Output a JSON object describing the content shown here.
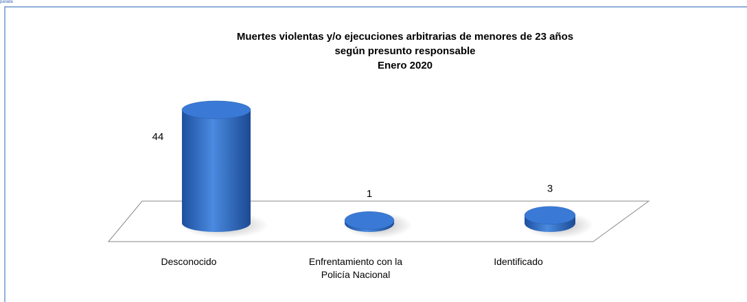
{
  "corner_label": "parada",
  "chart_data": {
    "type": "bar3d",
    "title": [
      "Muertes violentas y/o ejecuciones arbitrarias de menores de 23 años",
      "según presunto responsable",
      "Enero 2020"
    ],
    "categories": [
      "Desconocido",
      "Enfrentamiento con la Policía Nacional",
      "Identificado"
    ],
    "values": [
      44,
      1,
      3
    ],
    "color": "#2e6bc6"
  }
}
